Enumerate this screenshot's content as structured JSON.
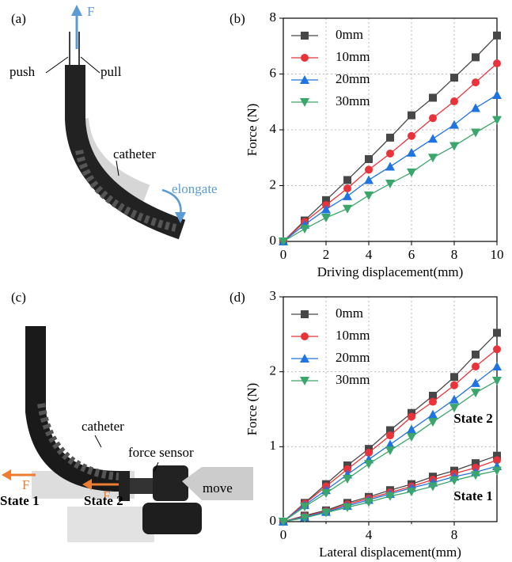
{
  "figure": {
    "panel_a": {
      "label": "(a)",
      "force": "F",
      "push": "push",
      "pull": "pull",
      "catheter": "catheter",
      "elongate": "elongate"
    },
    "panel_b": {
      "label": "(b)"
    },
    "panel_c": {
      "label": "(c)",
      "catheter": "catheter",
      "force_sensor": "force sensor",
      "move": "move",
      "state_1": "State 1",
      "state_2": "State 2",
      "force_1": "F",
      "force_2": "F"
    },
    "panel_d": {
      "label": "(d)"
    }
  },
  "chart_data": [
    {
      "type": "line",
      "xlabel": "Driving displacement(mm)",
      "ylabel": "Force (N)",
      "x": [
        0,
        1,
        2,
        3,
        4,
        5,
        6,
        7,
        8,
        9,
        10
      ],
      "xlim": [
        0,
        10
      ],
      "xticks": [
        0,
        2,
        4,
        6,
        8,
        10
      ],
      "ylim": [
        0,
        8
      ],
      "yticks": [
        0,
        2,
        4,
        6,
        8
      ],
      "grid": true,
      "legend": "upper left",
      "series": [
        {
          "name": "0mm",
          "color": "#474747",
          "marker": "square",
          "values": [
            0,
            0.75,
            1.48,
            2.2,
            2.95,
            3.72,
            4.52,
            5.15,
            5.87,
            6.6,
            7.38
          ]
        },
        {
          "name": "10mm",
          "color": "#e8333a",
          "marker": "circle",
          "values": [
            0,
            0.7,
            1.3,
            1.9,
            2.57,
            3.15,
            3.78,
            4.42,
            5.02,
            5.7,
            6.38
          ]
        },
        {
          "name": "20mm",
          "color": "#1f74e0",
          "marker": "triangle-up",
          "values": [
            0,
            0.6,
            1.15,
            1.62,
            2.2,
            2.68,
            3.18,
            3.68,
            4.18,
            4.78,
            5.25
          ]
        },
        {
          "name": "30mm",
          "color": "#3aa66b",
          "marker": "triangle-down",
          "values": [
            0,
            0.45,
            0.85,
            1.17,
            1.65,
            2.07,
            2.47,
            3.0,
            3.42,
            3.9,
            4.35
          ]
        }
      ]
    },
    {
      "type": "line",
      "xlabel": "Lateral displacement(mm)",
      "ylabel": "Force (N)",
      "x": [
        0,
        1,
        2,
        3,
        4,
        5,
        6,
        7,
        8,
        9,
        10
      ],
      "xlim": [
        0,
        10
      ],
      "xticks": [
        0,
        4,
        8
      ],
      "minor_xticks": [
        2,
        6
      ],
      "ylim": [
        0,
        3
      ],
      "yticks": [
        0,
        1,
        2,
        3
      ],
      "grid": true,
      "legend": "upper left",
      "annotations": [
        "State 2",
        "State 1"
      ],
      "series": [
        {
          "name": "0mm",
          "color": "#474747",
          "marker": "square",
          "values": [
            0,
            0.25,
            0.5,
            0.75,
            0.97,
            1.22,
            1.45,
            1.68,
            1.93,
            2.23,
            2.52
          ],
          "values_state_1": [
            0,
            0.08,
            0.15,
            0.25,
            0.33,
            0.42,
            0.5,
            0.6,
            0.68,
            0.78,
            0.88
          ]
        },
        {
          "name": "10mm",
          "color": "#e8333a",
          "marker": "circle",
          "values": [
            0,
            0.24,
            0.47,
            0.7,
            0.92,
            1.15,
            1.4,
            1.6,
            1.82,
            2.07,
            2.3
          ],
          "values_state_1": [
            0,
            0.07,
            0.14,
            0.23,
            0.31,
            0.39,
            0.47,
            0.56,
            0.64,
            0.72,
            0.82
          ]
        },
        {
          "name": "20mm",
          "color": "#1f74e0",
          "marker": "triangle-up",
          "values": [
            0,
            0.22,
            0.42,
            0.63,
            0.83,
            1.03,
            1.23,
            1.43,
            1.63,
            1.85,
            2.07
          ],
          "values_state_1": [
            0,
            0.06,
            0.13,
            0.21,
            0.29,
            0.37,
            0.45,
            0.52,
            0.6,
            0.66,
            0.74
          ]
        },
        {
          "name": "30mm",
          "color": "#3aa66b",
          "marker": "triangle-down",
          "values": [
            0,
            0.2,
            0.38,
            0.57,
            0.77,
            0.95,
            1.13,
            1.33,
            1.52,
            1.72,
            1.88
          ],
          "values_state_1": [
            0,
            0.05,
            0.12,
            0.19,
            0.26,
            0.34,
            0.4,
            0.47,
            0.55,
            0.62,
            0.68
          ]
        }
      ]
    }
  ]
}
